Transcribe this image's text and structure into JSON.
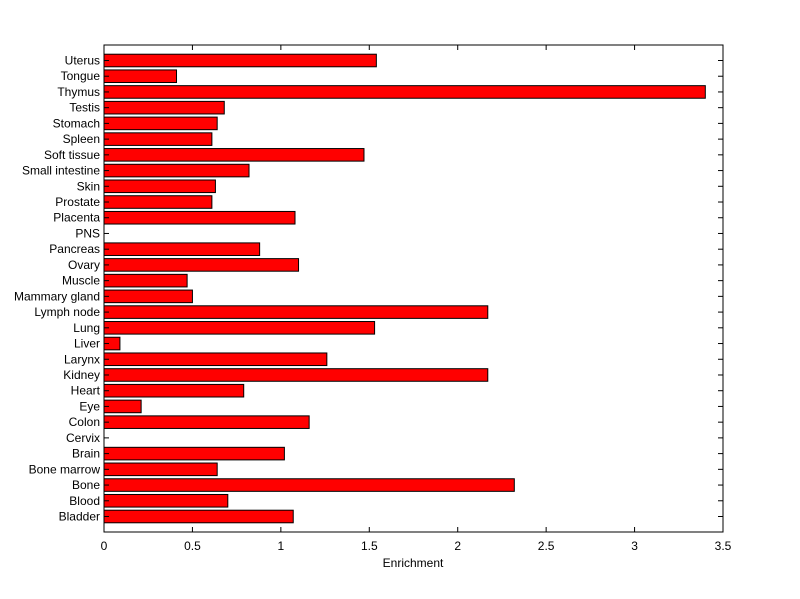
{
  "chart_data": {
    "type": "bar",
    "orientation": "horizontal",
    "title": "",
    "xlabel": "Enrichment",
    "ylabel": "",
    "xlim": [
      0,
      3.5
    ],
    "xticks": [
      0,
      0.5,
      1,
      1.5,
      2,
      2.5,
      3,
      3.5
    ],
    "xtick_labels": [
      "0",
      "0.5",
      "1",
      "1.5",
      "2",
      "2.5",
      "3",
      "3.5"
    ],
    "grid": false,
    "legend": "none",
    "bar_color": "#ff0000",
    "bar_edge_color": "#000000",
    "categories": [
      "Bladder",
      "Blood",
      "Bone",
      "Bone marrow",
      "Brain",
      "Cervix",
      "Colon",
      "Eye",
      "Heart",
      "Kidney",
      "Larynx",
      "Liver",
      "Lung",
      "Lymph node",
      "Mammary gland",
      "Muscle",
      "Ovary",
      "Pancreas",
      "PNS",
      "Placenta",
      "Prostate",
      "Skin",
      "Small intestine",
      "Soft tissue",
      "Spleen",
      "Stomach",
      "Testis",
      "Thymus",
      "Tongue",
      "Uterus"
    ],
    "values": [
      1.07,
      0.7,
      2.32,
      0.64,
      1.02,
      0.0,
      1.16,
      0.21,
      0.79,
      2.17,
      1.26,
      0.09,
      1.53,
      2.17,
      0.5,
      0.47,
      1.1,
      0.88,
      0.0,
      1.08,
      0.61,
      0.63,
      0.82,
      1.47,
      0.61,
      0.64,
      0.68,
      3.4,
      0.41,
      1.54
    ]
  }
}
